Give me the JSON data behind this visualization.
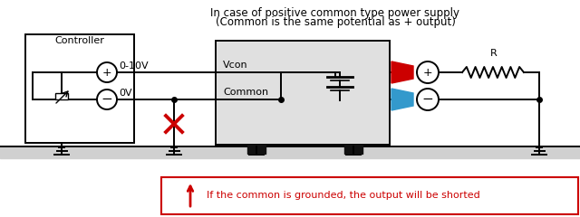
{
  "title_line1": "In case of positive common type power supply",
  "title_line2": "(Common is the same potential as + output)",
  "controller_label": "Controller",
  "vcon_label": "Vcon",
  "common_label": "Common",
  "voltage_plus_label": "0-10V",
  "voltage_minus_label": "0V",
  "R_label": "R",
  "warning_text": "If the common is grounded, the output will be shorted",
  "bg_color": "#ffffff",
  "psu_box_color": "#e0e0e0",
  "ground_strip_color": "#d0d0d0",
  "line_color": "#000000",
  "red_color": "#cc0000",
  "blue_color": "#3399cc",
  "title_fontsize": 8.5,
  "label_fontsize": 8.0,
  "lw": 1.4
}
